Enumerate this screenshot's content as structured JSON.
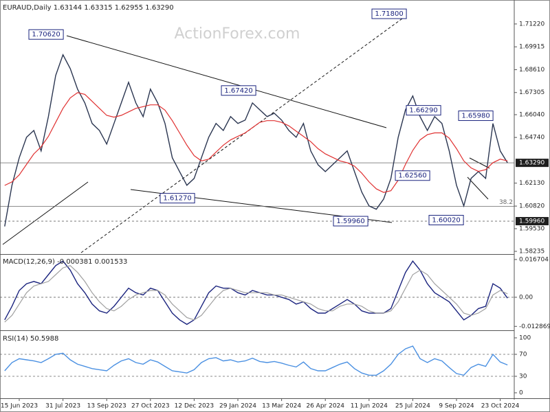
{
  "watermark": "ActionForex.com",
  "chart_data": [
    {
      "type": "line",
      "title": "EURAUD,Daily  1.63144 1.63315 1.62955 1.63290",
      "ylim": [
        1.5808,
        1.7251
      ],
      "yticks": [
        {
          "value": 1.7122,
          "label": "1.71220"
        },
        {
          "value": 1.69915,
          "label": "1.69915"
        },
        {
          "value": 1.6861,
          "label": "1.68610"
        },
        {
          "value": 1.67305,
          "label": "1.67305"
        },
        {
          "value": 1.6604,
          "label": "1.66040"
        },
        {
          "value": 1.6474,
          "label": "1.64740"
        },
        {
          "value": 1.6213,
          "label": "1.62130"
        },
        {
          "value": 1.6082,
          "label": "1.60820"
        },
        {
          "value": 1.5953,
          "label": "1.59530"
        },
        {
          "value": 1.58235,
          "label": "1.58235"
        }
      ],
      "series": [
        {
          "name": "EURAUD",
          "color": "#2a3550",
          "values": [
            1.5966,
            1.6201,
            1.6358,
            1.6475,
            1.6514,
            1.6397,
            1.6593,
            1.6828,
            1.6946,
            1.6867,
            1.675,
            1.6671,
            1.6554,
            1.6514,
            1.6436,
            1.6554,
            1.6671,
            1.6789,
            1.6671,
            1.6593,
            1.675,
            1.6671,
            1.6554,
            1.6358,
            1.6279,
            1.6201,
            1.624,
            1.6358,
            1.6475,
            1.6554,
            1.6514,
            1.6593,
            1.6554,
            1.6573,
            1.6671,
            1.6632,
            1.6593,
            1.6612,
            1.6573,
            1.6514,
            1.6475,
            1.6554,
            1.6397,
            1.6318,
            1.6279,
            1.6318,
            1.6358,
            1.6397,
            1.6279,
            1.6162,
            1.6083,
            1.6064,
            1.6122,
            1.624,
            1.6475,
            1.6632,
            1.6711,
            1.6593,
            1.6514,
            1.6593,
            1.6554,
            1.6397,
            1.6201,
            1.6083,
            1.624,
            1.6279,
            1.624,
            1.6554,
            1.6397,
            1.6329
          ]
        },
        {
          "name": "MA",
          "color": "#e03030",
          "values": [
            1.62,
            1.622,
            1.626,
            1.632,
            1.638,
            1.642,
            1.648,
            1.656,
            1.664,
            1.67,
            1.673,
            1.672,
            1.668,
            1.664,
            1.66,
            1.659,
            1.66,
            1.662,
            1.664,
            1.665,
            1.666,
            1.666,
            1.663,
            1.657,
            1.65,
            1.643,
            1.637,
            1.634,
            1.635,
            1.639,
            1.643,
            1.646,
            1.648,
            1.65,
            1.653,
            1.656,
            1.657,
            1.657,
            1.656,
            1.654,
            1.651,
            1.648,
            1.645,
            1.641,
            1.638,
            1.636,
            1.634,
            1.633,
            1.631,
            1.627,
            1.622,
            1.618,
            1.616,
            1.617,
            1.623,
            1.632,
            1.64,
            1.646,
            1.649,
            1.65,
            1.65,
            1.647,
            1.641,
            1.634,
            1.63,
            1.628,
            1.629,
            1.633,
            1.635,
            1.634
          ]
        }
      ],
      "levels": [
        {
          "value": 1.6329,
          "style": "solid"
        },
        {
          "value": 1.6081,
          "label": "38.2",
          "style": "solid"
        },
        {
          "value": 1.5996,
          "style": "dashed"
        }
      ],
      "price_tags": [
        {
          "value": 1.6329,
          "label": "1.63290"
        },
        {
          "value": 1.5996,
          "label": "1.59960"
        }
      ],
      "annotations": [
        {
          "text": "1.70620",
          "value": 1.7062
        },
        {
          "text": "1.71800",
          "value": 1.718
        },
        {
          "text": "1.67420",
          "value": 1.6742
        },
        {
          "text": "1.66290",
          "value": 1.6629
        },
        {
          "text": "1.65980",
          "value": 1.6598
        },
        {
          "text": "1.62560",
          "value": 1.6256
        },
        {
          "text": "1.61270",
          "value": 1.6127
        },
        {
          "text": "1.59960",
          "value": 1.5996
        },
        {
          "text": "1.60020",
          "value": 1.6002
        }
      ]
    },
    {
      "type": "line",
      "title": "MACD(12,26,9) -0.000381 0.001533",
      "ylim": [
        -0.0143,
        0.0185
      ],
      "yticks": [
        0.016704,
        {
          "value": 0,
          "label": "0.00"
        },
        -0.012869
      ],
      "series": [
        {
          "name": "MACD",
          "color": "#1a237e",
          "values": [
            -0.01,
            -0.004,
            0.003,
            0.006,
            0.007,
            0.006,
            0.01,
            0.014,
            0.016,
            0.012,
            0.006,
            0.002,
            -0.003,
            -0.006,
            -0.007,
            -0.004,
            0,
            0.004,
            0.002,
            0.001,
            0.004,
            0.003,
            -0.002,
            -0.007,
            -0.01,
            -0.012,
            -0.01,
            -0.004,
            0.002,
            0.005,
            0.004,
            0.004,
            0.002,
            0.001,
            0.003,
            0.002,
            0.001,
            0.001,
            0,
            -0.001,
            -0.003,
            -0.002,
            -0.005,
            -0.007,
            -0.007,
            -0.005,
            -0.003,
            -0.001,
            -0.003,
            -0.006,
            -0.007,
            -0.007,
            -0.007,
            -0.005,
            0.003,
            0.011,
            0.016,
            0.012,
            0.006,
            0.002,
            0,
            -0.002,
            -0.006,
            -0.01,
            -0.008,
            -0.005,
            -0.004,
            0.006,
            0.004,
            -0.000381
          ]
        },
        {
          "name": "Signal",
          "color": "#a0a0a0",
          "values": [
            -0.011,
            -0.008,
            -0.003,
            0.002,
            0.005,
            0.006,
            0.007,
            0.01,
            0.013,
            0.014,
            0.011,
            0.007,
            0.002,
            -0.002,
            -0.005,
            -0.006,
            -0.004,
            -0.001,
            0.001,
            0.002,
            0.003,
            0.003,
            0.001,
            -0.003,
            -0.006,
            -0.009,
            -0.01,
            -0.008,
            -0.004,
            0,
            0.003,
            0.004,
            0.003,
            0.002,
            0.002,
            0.002,
            0.002,
            0.001,
            0.001,
            0,
            -0.001,
            -0.002,
            -0.003,
            -0.005,
            -0.006,
            -0.006,
            -0.004,
            -0.003,
            -0.003,
            -0.004,
            -0.006,
            -0.007,
            -0.007,
            -0.006,
            -0.002,
            0.004,
            0.01,
            0.012,
            0.01,
            0.006,
            0.003,
            0,
            -0.003,
            -0.007,
            -0.008,
            -0.007,
            -0.005,
            0.001,
            0.003,
            0.001533
          ]
        }
      ],
      "levels": [
        {
          "value": 0,
          "style": "dashed"
        }
      ]
    },
    {
      "type": "line",
      "title": "RSI(14) 50.5988",
      "ylim": [
        -10,
        110
      ],
      "yticks": [
        0,
        30,
        70,
        100
      ],
      "categories": [
        null,
        null,
        "15 Jun 2023",
        null,
        null,
        null,
        null,
        null,
        "31 Jul 2023",
        null,
        null,
        null,
        null,
        null,
        "13 Sep 2023",
        null,
        null,
        null,
        null,
        null,
        "27 Oct 2023",
        null,
        null,
        null,
        null,
        null,
        "12 Dec 2023",
        null,
        null,
        null,
        null,
        null,
        "29 Jan 2024",
        null,
        null,
        null,
        null,
        null,
        "13 Mar 2024",
        null,
        null,
        null,
        null,
        null,
        "26 Apr 2024",
        null,
        null,
        null,
        null,
        null,
        "11 Jun 2024",
        null,
        null,
        null,
        null,
        null,
        "25 Jul 2024",
        null,
        null,
        null,
        null,
        null,
        "9 Sep 2024",
        null,
        null,
        null,
        null,
        null,
        "23 Oct 2024",
        null
      ],
      "series": [
        {
          "name": "RSI",
          "color": "#4a90e2",
          "values": [
            40,
            55,
            62,
            60,
            58,
            55,
            62,
            70,
            72,
            60,
            52,
            48,
            44,
            42,
            40,
            50,
            58,
            62,
            55,
            52,
            60,
            56,
            48,
            40,
            38,
            36,
            42,
            55,
            62,
            64,
            58,
            60,
            56,
            58,
            63,
            57,
            55,
            57,
            54,
            50,
            47,
            56,
            44,
            40,
            40,
            46,
            52,
            56,
            44,
            36,
            32,
            32,
            40,
            52,
            70,
            80,
            85,
            62,
            55,
            62,
            58,
            46,
            35,
            32,
            46,
            52,
            48,
            70,
            56,
            50.5988
          ]
        }
      ],
      "levels": [
        {
          "value": 30,
          "style": "dashed"
        },
        {
          "value": 70,
          "style": "dashed"
        }
      ]
    }
  ]
}
